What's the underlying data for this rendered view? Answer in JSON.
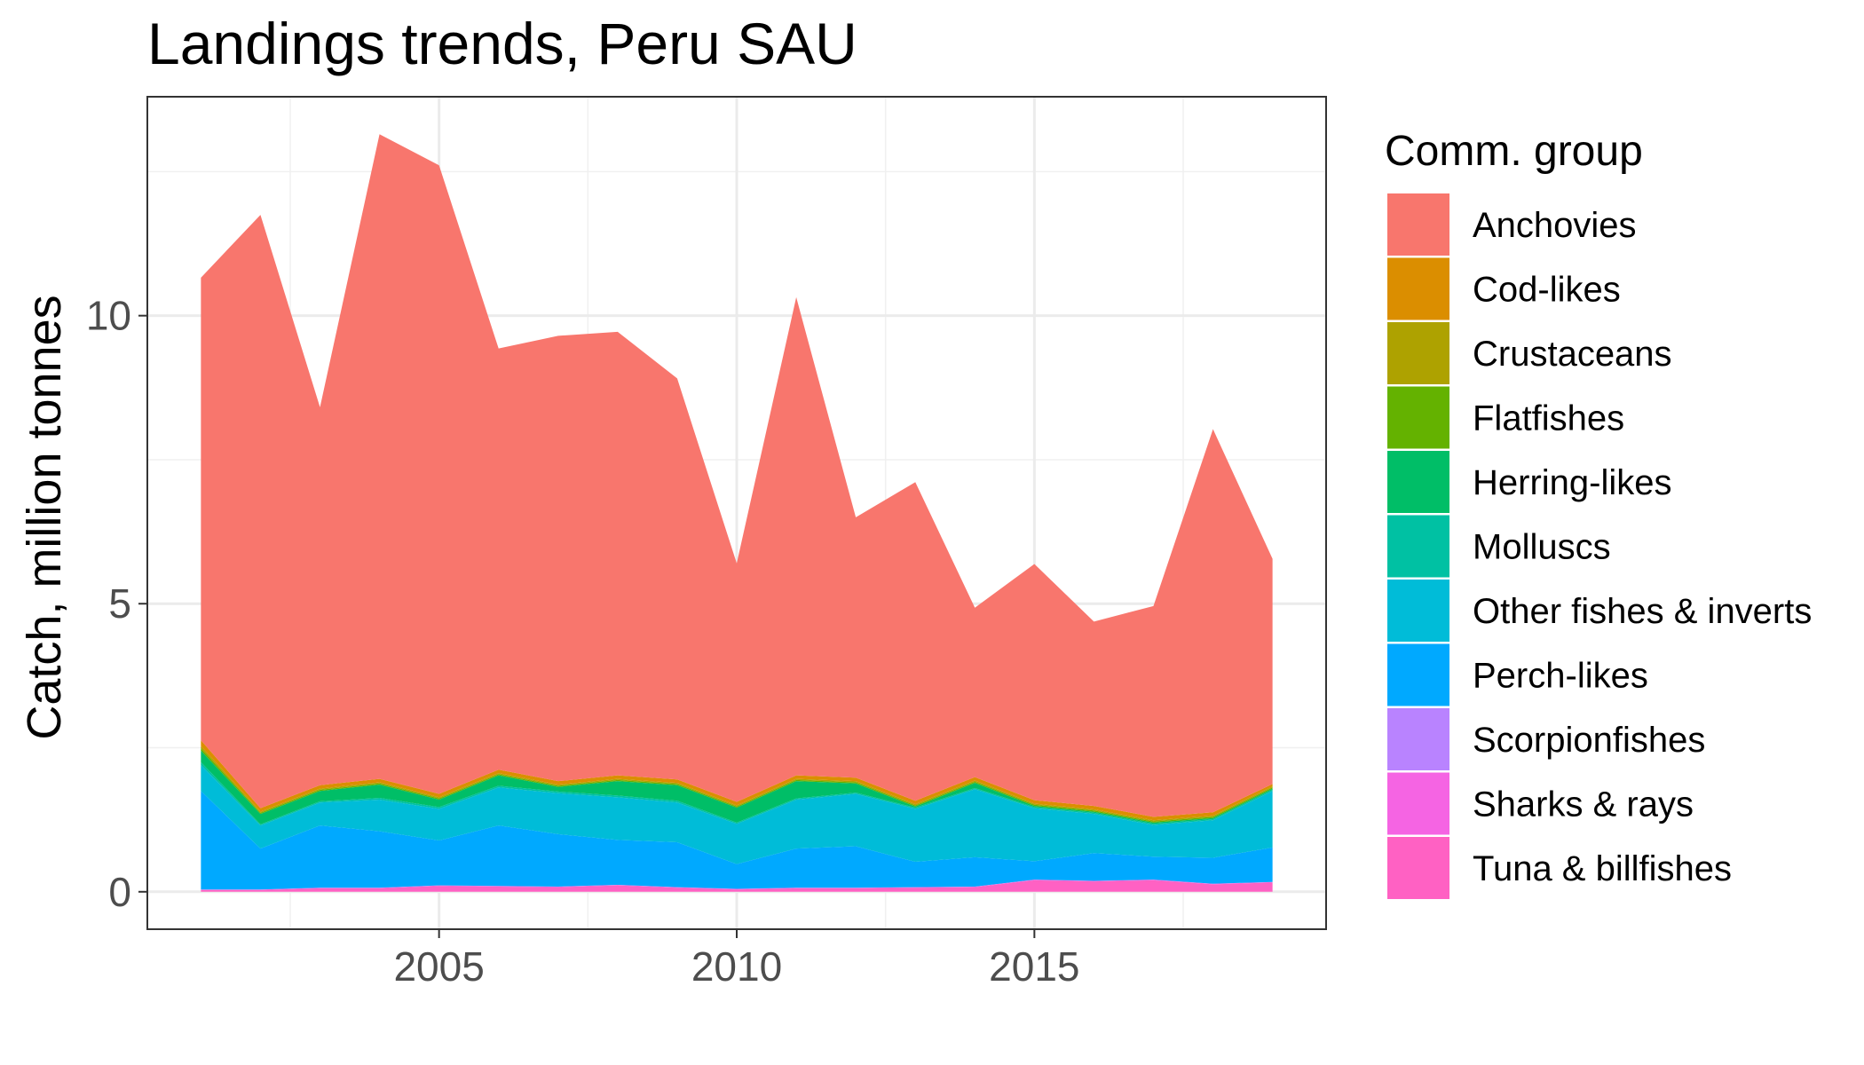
{
  "chart_data": {
    "type": "area",
    "stacked": true,
    "title": "Landings trends, Peru SAU",
    "xlabel": "",
    "ylabel": "Catch, million tonnes",
    "xlim": [
      2000.1,
      2019.9
    ],
    "ylim": [
      -0.65,
      13.8
    ],
    "x_ticks": [
      2005,
      2010,
      2015
    ],
    "y_ticks": [
      0,
      5,
      10
    ],
    "x_tick_labels": [
      "2005",
      "2010",
      "2015"
    ],
    "y_tick_labels": [
      "0",
      "5",
      "10"
    ],
    "grid": true,
    "legend_position": "right",
    "legend_title": "Comm. group",
    "x": [
      2001,
      2002,
      2003,
      2004,
      2005,
      2006,
      2007,
      2008,
      2009,
      2010,
      2011,
      2012,
      2013,
      2014,
      2015,
      2016,
      2017,
      2018,
      2019
    ],
    "series": [
      {
        "name": "Tuna & billfishes",
        "color": "#FF61C3",
        "values": [
          0.03,
          0.03,
          0.06,
          0.06,
          0.1,
          0.09,
          0.08,
          0.11,
          0.07,
          0.04,
          0.06,
          0.06,
          0.07,
          0.08,
          0.2,
          0.18,
          0.2,
          0.13,
          0.16
        ]
      },
      {
        "name": "Sharks & rays",
        "color": "#F564E3",
        "values": [
          0.01,
          0.01,
          0.01,
          0.01,
          0.01,
          0.01,
          0.01,
          0.01,
          0.01,
          0.01,
          0.01,
          0.01,
          0.01,
          0.01,
          0.01,
          0.01,
          0.01,
          0.01,
          0.01
        ]
      },
      {
        "name": "Scorpionfishes",
        "color": "#B983FF",
        "values": [
          0.0,
          0.0,
          0.0,
          0.0,
          0.0,
          0.0,
          0.0,
          0.0,
          0.0,
          0.0,
          0.0,
          0.0,
          0.0,
          0.0,
          0.0,
          0.0,
          0.0,
          0.0,
          0.0
        ]
      },
      {
        "name": "Perch-likes",
        "color": "#00A9FF",
        "values": [
          1.71,
          0.71,
          1.08,
          0.98,
          0.78,
          1.05,
          0.91,
          0.78,
          0.78,
          0.43,
          0.68,
          0.72,
          0.44,
          0.51,
          0.32,
          0.48,
          0.4,
          0.45,
          0.6
        ]
      },
      {
        "name": "Other fishes & inverts",
        "color": "#00BCD8",
        "values": [
          0.45,
          0.4,
          0.4,
          0.55,
          0.55,
          0.66,
          0.71,
          0.74,
          0.69,
          0.7,
          0.85,
          0.91,
          0.92,
          1.18,
          0.92,
          0.68,
          0.55,
          0.65,
          0.98
        ]
      },
      {
        "name": "Molluscs",
        "color": "#00C1A3",
        "values": [
          0.05,
          0.02,
          0.02,
          0.03,
          0.03,
          0.03,
          0.03,
          0.03,
          0.03,
          0.02,
          0.02,
          0.02,
          0.02,
          0.02,
          0.02,
          0.02,
          0.02,
          0.02,
          0.02
        ]
      },
      {
        "name": "Herring-likes",
        "color": "#00BE67",
        "values": [
          0.2,
          0.18,
          0.18,
          0.23,
          0.13,
          0.18,
          0.08,
          0.25,
          0.27,
          0.26,
          0.3,
          0.16,
          0.02,
          0.09,
          0.02,
          0.02,
          0.02,
          0.02,
          0.02
        ]
      },
      {
        "name": "Flatfishes",
        "color": "#64B200",
        "values": [
          0.04,
          0.02,
          0.02,
          0.02,
          0.02,
          0.02,
          0.02,
          0.02,
          0.02,
          0.02,
          0.02,
          0.02,
          0.02,
          0.02,
          0.02,
          0.02,
          0.02,
          0.02,
          0.02
        ]
      },
      {
        "name": "Crustaceans",
        "color": "#AEA200",
        "values": [
          0.04,
          0.02,
          0.02,
          0.02,
          0.02,
          0.02,
          0.02,
          0.02,
          0.02,
          0.02,
          0.02,
          0.02,
          0.02,
          0.02,
          0.02,
          0.02,
          0.02,
          0.02,
          0.02
        ]
      },
      {
        "name": "Cod-likes",
        "color": "#DB8E00",
        "values": [
          0.1,
          0.06,
          0.06,
          0.06,
          0.06,
          0.06,
          0.06,
          0.06,
          0.06,
          0.06,
          0.06,
          0.06,
          0.06,
          0.06,
          0.06,
          0.06,
          0.06,
          0.06,
          0.04
        ]
      },
      {
        "name": "Anchovies",
        "color": "#F8766D",
        "values": [
          8.03,
          10.3,
          6.56,
          11.19,
          10.91,
          7.31,
          7.73,
          7.7,
          6.96,
          4.14,
          8.3,
          4.52,
          5.53,
          2.94,
          4.1,
          3.2,
          3.66,
          6.65,
          3.91
        ]
      }
    ],
    "legend_order": [
      "Anchovies",
      "Cod-likes",
      "Crustaceans",
      "Flatfishes",
      "Herring-likes",
      "Molluscs",
      "Other fishes & inverts",
      "Perch-likes",
      "Scorpionfishes",
      "Sharks & rays",
      "Tuna & billfishes"
    ]
  }
}
